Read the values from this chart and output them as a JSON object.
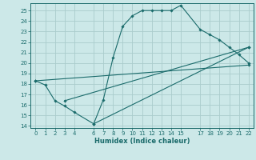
{
  "title": "",
  "xlabel": "Humidex (Indice chaleur)",
  "bg_color": "#cce8e8",
  "line_color": "#1a6b6b",
  "grid_color": "#aacccc",
  "xlim": [
    -0.5,
    22.5
  ],
  "ylim": [
    13.8,
    25.7
  ],
  "xticks": [
    0,
    1,
    2,
    3,
    4,
    6,
    7,
    8,
    9,
    10,
    11,
    12,
    13,
    14,
    15,
    17,
    18,
    19,
    20,
    21,
    22
  ],
  "yticks": [
    14,
    15,
    16,
    17,
    18,
    19,
    20,
    21,
    22,
    23,
    24,
    25
  ],
  "line1_x": [
    0,
    1,
    2,
    3,
    4,
    6,
    7,
    8,
    9,
    10,
    11,
    12,
    13,
    14,
    15,
    17,
    18,
    19,
    20,
    21,
    22
  ],
  "line1_y": [
    18.3,
    17.9,
    16.4,
    15.9,
    15.3,
    14.2,
    16.5,
    20.5,
    23.5,
    24.5,
    25.0,
    25.0,
    25.0,
    25.0,
    25.5,
    23.2,
    22.7,
    22.2,
    21.5,
    20.8,
    20.0
  ],
  "line2_x": [
    0,
    22
  ],
  "line2_y": [
    18.3,
    19.8
  ],
  "line3_x": [
    3,
    22
  ],
  "line3_y": [
    16.4,
    21.5
  ],
  "line4_x": [
    6,
    22
  ],
  "line4_y": [
    14.2,
    21.5
  ],
  "tick_fontsize": 5.0,
  "xlabel_fontsize": 6.0,
  "lw": 0.8,
  "ms": 1.8
}
